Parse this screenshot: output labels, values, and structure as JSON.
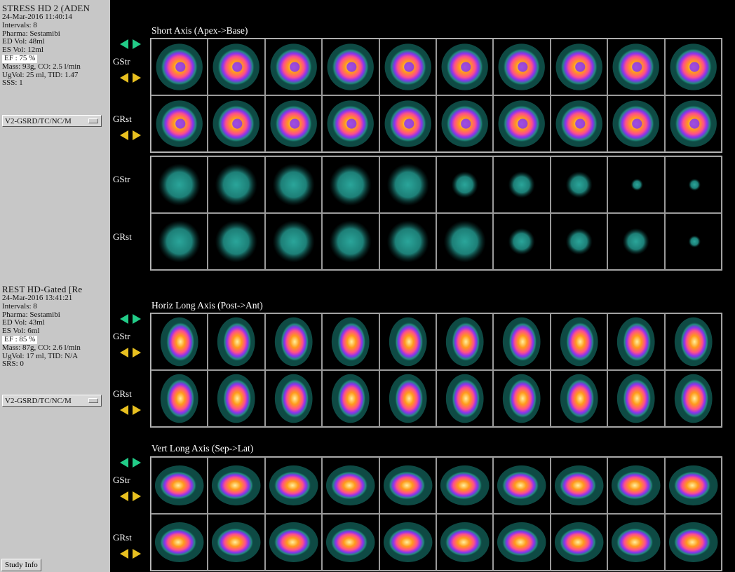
{
  "sidebar": {
    "stress": {
      "title": "STRESS HD 2 (ADEN",
      "date": "24-Mar-2016 11:40:14",
      "intervals": "Intervals: 8",
      "pharma": "Pharma: Sestamibi",
      "ed_vol": "ED Vol:   48ml",
      "es_vol": "ES Vol:   12ml",
      "ef": "EF  : 75 %",
      "mass": "Mass: 93g, CO: 2.5 l/min",
      "ug": "UgVol:  25 ml,  TID: 1.47",
      "score": "SSS: 1",
      "dropdown": "V2-GSRD/TC/NC/M"
    },
    "rest": {
      "title": "REST HD-Gated [Re",
      "date": "24-Mar-2016 13:41:21",
      "intervals": "Intervals: 8",
      "pharma": "Pharma: Sestamibi",
      "ed_vol": "ED Vol:   43ml",
      "es_vol": "ES Vol:   6ml",
      "ef": "EF  : 85 %",
      "mass": "Mass: 87g, CO: 2.6 l/min",
      "ug": "UgVol:  17 ml,  TID: N/A",
      "score": "SRS: 0",
      "dropdown": "V2-GSRD/TC/NC/M"
    },
    "study_info_button": "Study Info"
  },
  "sections": {
    "short_axis": "Short Axis (Apex->Base)",
    "horiz_long_axis": "Horiz Long Axis (Post->Ant)",
    "vert_long_axis": "Vert Long Axis (Sep->Lat)"
  },
  "row_labels": {
    "stress": "GStr",
    "rest": "GRst"
  },
  "colors": {
    "sidebar_bg": "#c7c7c7",
    "viewer_bg": "#000000",
    "arrow_up": "#22cc88",
    "arrow_down": "#e8c020"
  },
  "icons": {
    "cine_up": "green-double-arrow-icon",
    "cine_down": "yellow-double-arrow-icon"
  }
}
